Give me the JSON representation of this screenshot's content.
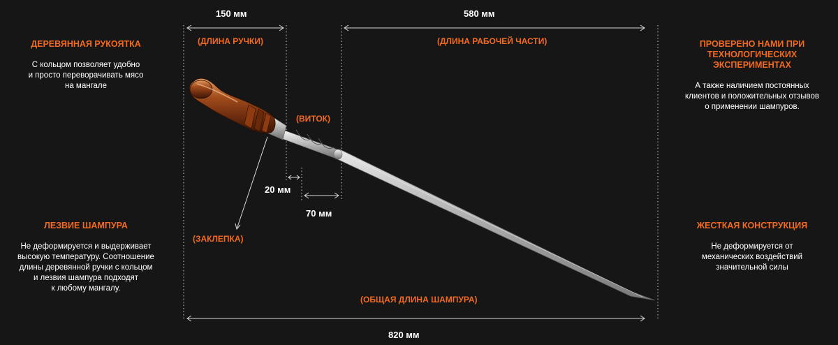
{
  "features": {
    "handle": {
      "title": "ДЕРЕВЯННАЯ РУКОЯТКА",
      "desc": "С кольцом позволяет удобно\nи просто переворачивать мясо\nна мангале"
    },
    "blade": {
      "title": "ЛЕЗВИЕ ШАМПУРА",
      "desc": "Не деформируется и выдерживает\nвысокую температуру. Соотношение\nдлины деревянной ручки с кольцом\nи лезвия шампура подходят\nк любому мангалу."
    },
    "tested": {
      "title": "ПРОВЕРЕНО НАМИ ПРИ\nТЕХНОЛОГИЧЕСКИХ\nЭКСПЕРИМЕНТАХ",
      "desc": "А также наличием постоянных\nклиентов и положительных отзывов\nо применении шампуров."
    },
    "rigid": {
      "title": "ЖЕСТКАЯ КОНСТРУКЦИЯ",
      "desc": "Не деформируется от\nмеханических воздействий\nзначительной силы"
    }
  },
  "dimensions": {
    "handle_length": "150 мм",
    "work_length": "580 мм",
    "twist_gap": "20 мм",
    "twist_length": "70 мм",
    "total_length": "820 мм"
  },
  "notes": {
    "handle_length": "(ДЛИНА РУЧКИ)",
    "work_length": "(ДЛИНА РАБОЧЕЙ ЧАСТИ)",
    "twist": "(ВИТОК)",
    "rivet": "(ЗАКЛЕПКА)",
    "total_length": "(ОБЩАЯ ДЛИНА ШАМПУРА)"
  },
  "colors": {
    "accent": "#f26a21",
    "background": "#161616",
    "text": "#ffffff"
  }
}
